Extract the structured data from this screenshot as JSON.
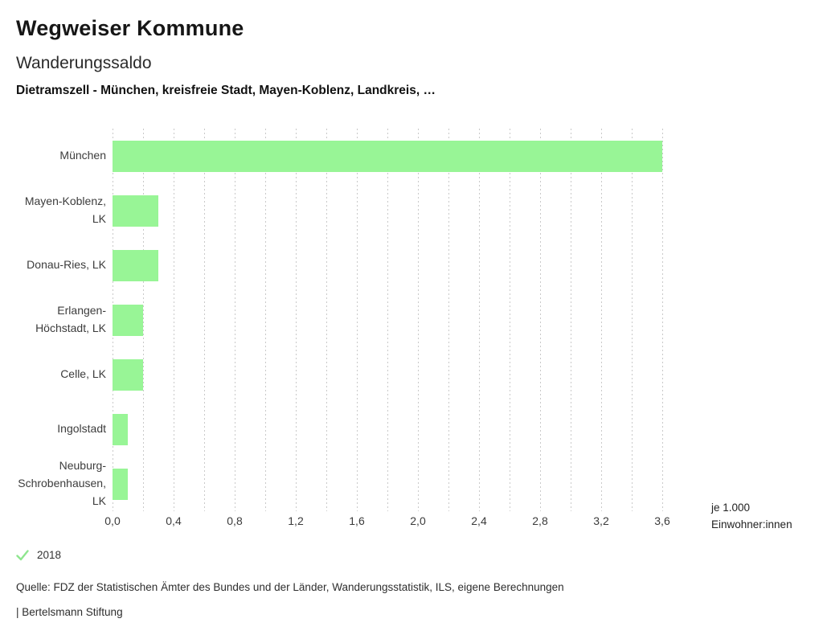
{
  "header": {
    "title": "Wegweiser Kommune",
    "subtitle": "Wanderungssaldo",
    "context": "Dietramszell - München, kreisfreie Stadt, Mayen-Koblenz, Landkreis, …"
  },
  "chart_data": {
    "type": "bar",
    "orientation": "horizontal",
    "title": "Wanderungssaldo",
    "categories": [
      "München",
      "Mayen-Koblenz, LK",
      "Donau-Ries, LK",
      "Erlangen-Höchstadt, LK",
      "Celle, LK",
      "Ingolstadt",
      "Neuburg-Schrobenhausen, LK"
    ],
    "series": [
      {
        "name": "2018",
        "values": [
          3.6,
          0.3,
          0.3,
          0.2,
          0.2,
          0.1,
          0.1
        ]
      }
    ],
    "xlabel": "je 1.000 Einwohner:innen",
    "xlim": [
      0,
      3.7
    ],
    "x_tick_values": [
      0.0,
      0.4,
      0.8,
      1.2,
      1.6,
      2.0,
      2.4,
      2.8,
      3.2,
      3.6
    ],
    "x_tick_labels": [
      "0,0",
      "0,4",
      "0,8",
      "1,2",
      "1,6",
      "2,0",
      "2,4",
      "2,8",
      "3,2",
      "3,6"
    ],
    "gridline_step": 0.2,
    "gridline_max": 3.6,
    "grid": "dashed-vertical",
    "bar_color": "#98f596",
    "legend_position": "bottom"
  },
  "unit_label": {
    "line1": "je 1.000",
    "line2": "Einwohner:innen"
  },
  "legend": {
    "year": "2018",
    "check_color": "#8fe68f"
  },
  "footer": {
    "source": "Quelle: FDZ der Statistischen Ämter des Bundes und der Länder, Wanderungsstatistik, ILS, eigene Berechnungen",
    "branding": "| Bertelsmann Stiftung"
  }
}
